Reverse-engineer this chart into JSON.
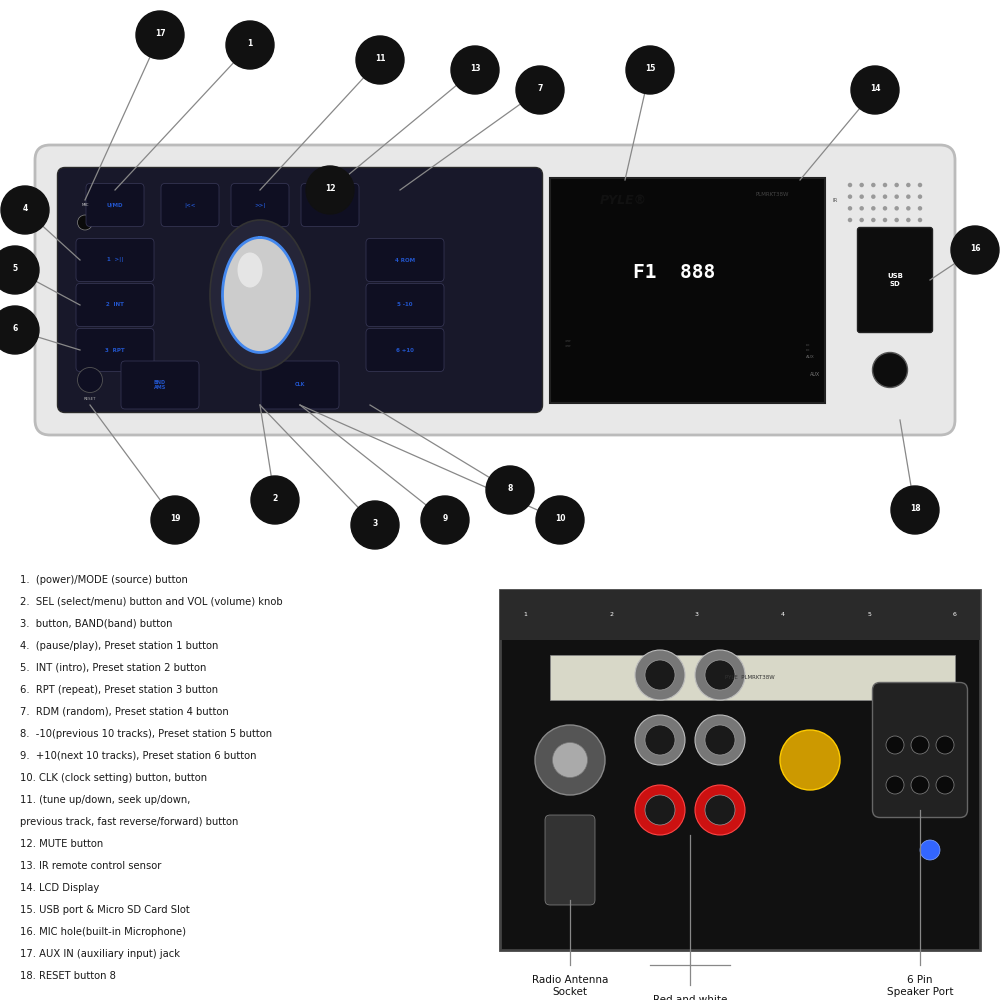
{
  "bg_color": "#ffffff",
  "legend_items": [
    "1.  (power)/MODE (source) button",
    "2.  SEL (select/menu) button and VOL (volume) knob",
    "3.  button, BAND(band) button",
    "4.  (pause/play), Preset station 1 button",
    "5.  INT (intro), Preset station 2 button",
    "6.  RPT (repeat), Preset station 3 button",
    "7.  RDM (random), Preset station 4 button",
    "8.  -10(previous 10 tracks), Preset station 5 button",
    "9.  +10(next 10 tracks), Preset station 6 button",
    "10. CLK (clock setting) button, button",
    "11. (tune up/down, seek up/down,",
    "previous track, fast reverse/forward) button",
    "12. MUTE button",
    "13. IR remote control sensor",
    "14. LCD Display",
    "15. USB port & Micro SD Card Slot",
    "16. MIC hole(built-in Microphone)",
    "17. AUX IN (auxiliary input) jack",
    "18. RESET button 8"
  ],
  "unit_color": "#e8e8e8",
  "panel_color": "#18182a",
  "display_color": "#080808",
  "button_blue": "#2255cc",
  "line_color": "#888888",
  "circle_color": "#111111"
}
